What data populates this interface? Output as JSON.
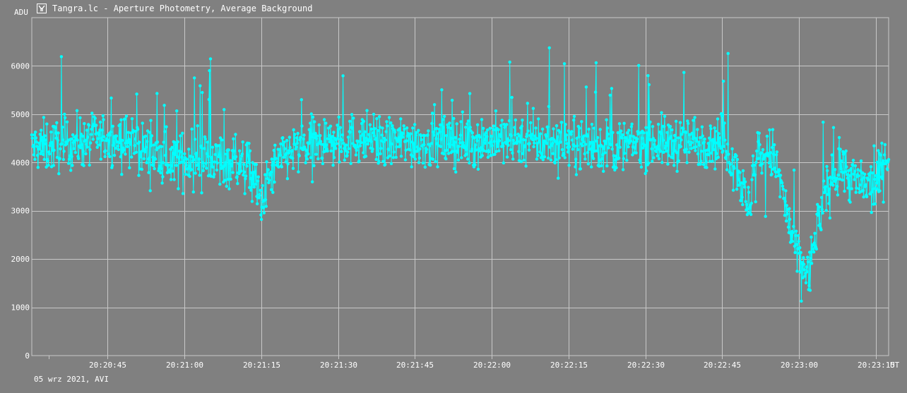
{
  "window": {
    "title": "Tangra.lc - Aperture Photometry, Average Background",
    "icon": "tangra-app-icon"
  },
  "footer": {
    "date_text": "05 wrz 2021, AVI"
  },
  "colors": {
    "background": "#808080",
    "grid": "#c8c8c8",
    "series": "#00ffff",
    "text": "#ffffff"
  },
  "chart_data": {
    "type": "line",
    "ylabel": "ADU",
    "xlabel": "UT",
    "ylim": [
      0,
      7000
    ],
    "yticks": [
      0,
      1000,
      2000,
      3000,
      4000,
      5000,
      6000
    ],
    "xticks": [
      "20:20:45",
      "20:21:00",
      "20:21:15",
      "20:21:30",
      "20:21:45",
      "20:22:00",
      "20:22:15",
      "20:22:30",
      "20:22:45",
      "20:23:00",
      "20:23:15"
    ],
    "x_range": [
      "20:20:30.2",
      "20:23:17.5"
    ],
    "grid": true,
    "markers": true,
    "series": [
      {
        "x": [
          "20:20:30",
          "20:20:35",
          "20:20:40",
          "20:20:45",
          "20:20:50",
          "20:20:55",
          "20:21:00",
          "20:21:05",
          "20:21:10",
          "20:21:13",
          "20:21:15",
          "20:21:17",
          "20:21:20",
          "20:21:25",
          "20:21:30",
          "20:21:35",
          "20:21:40",
          "20:21:45",
          "20:21:50",
          "20:21:55",
          "20:22:00",
          "20:22:05",
          "20:22:10",
          "20:22:15",
          "20:22:20",
          "20:22:25",
          "20:22:30",
          "20:22:35",
          "20:22:40",
          "20:22:45",
          "20:22:48",
          "20:22:50",
          "20:22:52",
          "20:22:55",
          "20:22:57",
          "20:22:58",
          "20:23:00",
          "20:23:02",
          "20:23:03",
          "20:23:05",
          "20:23:08",
          "20:23:10",
          "20:23:13",
          "20:23:15",
          "20:23:17"
        ],
        "values": [
          4300,
          4350,
          4450,
          4500,
          4400,
          4100,
          4050,
          4100,
          4000,
          3900,
          3100,
          3800,
          4200,
          4350,
          4450,
          4500,
          4400,
          4450,
          4400,
          4450,
          4450,
          4500,
          4400,
          4450,
          4350,
          4300,
          4450,
          4400,
          4450,
          4450,
          3900,
          3000,
          4200,
          4150,
          3300,
          2700,
          2000,
          1650,
          2400,
          3300,
          4000,
          3700,
          3500,
          3500,
          4200
        ],
        "noise_adu": 450
      }
    ]
  }
}
